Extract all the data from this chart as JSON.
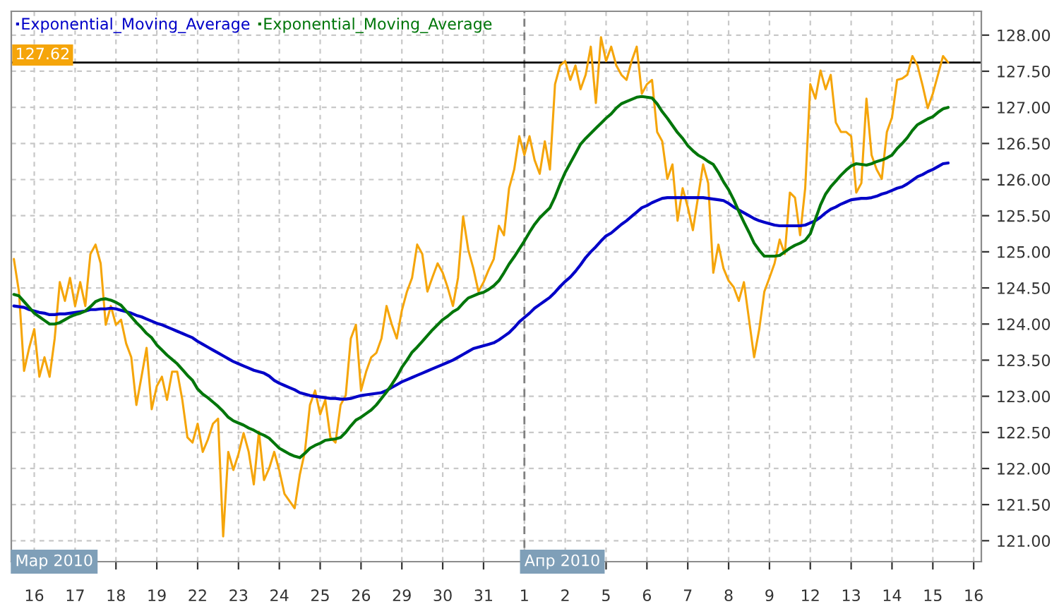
{
  "chart_data": {
    "type": "line",
    "categories": [
      null,
      null,
      null,
      null,
      "16",
      null,
      null,
      null,
      null,
      null,
      null,
      null,
      "17",
      null,
      null,
      null,
      null,
      null,
      null,
      null,
      "18",
      null,
      null,
      null,
      null,
      null,
      null,
      null,
      "19",
      null,
      null,
      null,
      null,
      null,
      null,
      null,
      "22",
      null,
      null,
      null,
      null,
      null,
      null,
      null,
      "23",
      null,
      null,
      null,
      null,
      null,
      null,
      null,
      "24",
      null,
      null,
      null,
      null,
      null,
      null,
      null,
      "25",
      null,
      null,
      null,
      null,
      null,
      null,
      null,
      "26",
      null,
      null,
      null,
      null,
      null,
      null,
      null,
      "29",
      null,
      null,
      null,
      null,
      null,
      null,
      null,
      "30",
      null,
      null,
      null,
      null,
      null,
      null,
      null,
      "31",
      null,
      null,
      null,
      null,
      null,
      null,
      null,
      "1",
      null,
      null,
      null,
      null,
      null,
      null,
      null,
      "2",
      null,
      null,
      null,
      null,
      null,
      null,
      null,
      "5",
      null,
      null,
      null,
      null,
      null,
      null,
      null,
      "6",
      null,
      null,
      null,
      null,
      null,
      null,
      null,
      "7",
      null,
      null,
      null,
      null,
      null,
      null,
      null,
      "8",
      null,
      null,
      null,
      null,
      null,
      null,
      null,
      "9",
      null,
      null,
      null,
      null,
      null,
      null,
      null,
      "12",
      null,
      null,
      null,
      null,
      null,
      null,
      null,
      "13",
      null,
      null,
      null,
      null,
      null,
      null,
      null,
      "14",
      null,
      null,
      null,
      null,
      null,
      null,
      null,
      "15",
      null,
      null,
      null,
      null,
      null,
      null,
      null,
      "16",
      null
    ],
    "ylim": [
      120.71,
      128.33
    ],
    "yticks": [
      {
        "value": 121,
        "label": "121.00"
      },
      {
        "value": 121.5,
        "label": "121.50"
      },
      {
        "value": 122,
        "label": "122.00"
      },
      {
        "value": 122.5,
        "label": "122.50"
      },
      {
        "value": 123,
        "label": "123.00"
      },
      {
        "value": 123.5,
        "label": "123.50"
      },
      {
        "value": 124,
        "label": "124.00"
      },
      {
        "value": 124.5,
        "label": "124.50"
      },
      {
        "value": 125,
        "label": "125.00"
      },
      {
        "value": 125.5,
        "label": "125.50"
      },
      {
        "value": 126,
        "label": "126.00"
      },
      {
        "value": 126.5,
        "label": "126.50"
      },
      {
        "value": 127,
        "label": "127.00"
      },
      {
        "value": 127.5,
        "label": "127.50"
      },
      {
        "value": 128,
        "label": "128.00"
      }
    ],
    "grid": true,
    "legend": "top left",
    "ref_lines": [
      {
        "axis": "x",
        "value": "1",
        "label": "Апр 2010",
        "color": "#808080",
        "line_style": "dashed"
      },
      {
        "axis": "y",
        "value": 127.62,
        "label": "127.62",
        "color": "#000000",
        "line_style": "solid"
      }
    ],
    "annotations": [
      "Мар 2010"
    ],
    "series": [
      {
        "color": "#f5a50a",
        "values": [
          124.9,
          124.45,
          123.35,
          123.67,
          123.93,
          123.27,
          123.54,
          123.27,
          123.8,
          124.58,
          124.32,
          124.64,
          124.25,
          124.58,
          124.25,
          124.97,
          125.1,
          124.84,
          123.99,
          124.25,
          123.99,
          124.06,
          123.73,
          123.54,
          122.88,
          123.27,
          123.67,
          122.82,
          123.14,
          123.27,
          122.95,
          123.34,
          123.34,
          122.95,
          122.43,
          122.36,
          122.62,
          122.23,
          122.4,
          122.62,
          122.69,
          121.06,
          122.23,
          121.98,
          122.2,
          122.49,
          122.23,
          121.78,
          122.51,
          121.84,
          122.0,
          122.23,
          121.97,
          121.65,
          121.55,
          121.45,
          121.91,
          122.23,
          122.88,
          123.08,
          122.75,
          122.95,
          122.43,
          122.36,
          122.88,
          123.01,
          123.8,
          123.99,
          123.08,
          123.34,
          123.54,
          123.6,
          123.8,
          124.25,
          124.0,
          123.8,
          124.19,
          124.45,
          124.64,
          125.1,
          124.97,
          124.45,
          124.65,
          124.84,
          124.71,
          124.5,
          124.25,
          124.64,
          125.49,
          125.03,
          124.77,
          124.45,
          124.58,
          124.75,
          124.9,
          125.36,
          125.23,
          125.88,
          126.14,
          126.6,
          126.34,
          126.6,
          126.27,
          126.08,
          126.53,
          126.14,
          127.32,
          127.58,
          127.64,
          127.38,
          127.58,
          127.25,
          127.45,
          127.84,
          127.06,
          127.97,
          127.64,
          127.84,
          127.58,
          127.45,
          127.38,
          127.64,
          127.84,
          127.19,
          127.32,
          127.38,
          126.66,
          126.53,
          126.01,
          126.21,
          125.43,
          125.88,
          125.62,
          125.3,
          125.75,
          126.21,
          125.95,
          124.71,
          125.1,
          124.77,
          124.6,
          124.51,
          124.32,
          124.58,
          124.06,
          123.54,
          123.93,
          124.45,
          124.64,
          124.84,
          125.17,
          124.97,
          125.82,
          125.75,
          125.23,
          125.88,
          127.32,
          127.12,
          127.51,
          127.25,
          127.45,
          126.79,
          126.66,
          126.66,
          126.6,
          125.82,
          125.95,
          127.12,
          126.34,
          126.14,
          126.01,
          126.66,
          126.86,
          127.38,
          127.4,
          127.45,
          127.71,
          127.58,
          127.3,
          126.99,
          127.19,
          127.45,
          127.71,
          127.62,
          null,
          null,
          null,
          null,
          null,
          null
        ]
      },
      {
        "name": "Exponential_Moving_Average",
        "color": "#0000c8",
        "values": [
          124.25,
          124.24,
          124.23,
          124.2,
          124.18,
          124.16,
          124.15,
          124.13,
          124.13,
          124.14,
          124.14,
          124.15,
          124.16,
          124.17,
          124.18,
          124.2,
          124.2,
          124.21,
          124.21,
          124.22,
          124.21,
          124.19,
          124.17,
          124.15,
          124.12,
          124.1,
          124.07,
          124.04,
          124.01,
          123.99,
          123.96,
          123.93,
          123.9,
          123.87,
          123.84,
          123.81,
          123.76,
          123.72,
          123.68,
          123.64,
          123.6,
          123.56,
          123.52,
          123.48,
          123.45,
          123.42,
          123.39,
          123.36,
          123.34,
          123.32,
          123.28,
          123.22,
          123.18,
          123.15,
          123.12,
          123.09,
          123.05,
          123.03,
          123.01,
          123.0,
          122.99,
          122.98,
          122.97,
          122.97,
          122.96,
          122.96,
          122.97,
          122.99,
          123.01,
          123.02,
          123.03,
          123.04,
          123.05,
          123.08,
          123.12,
          123.16,
          123.2,
          123.23,
          123.26,
          123.29,
          123.32,
          123.35,
          123.38,
          123.41,
          123.44,
          123.47,
          123.5,
          123.54,
          123.58,
          123.62,
          123.66,
          123.68,
          123.7,
          123.72,
          123.74,
          123.78,
          123.83,
          123.88,
          123.95,
          124.03,
          124.09,
          124.15,
          124.22,
          124.27,
          124.32,
          124.37,
          124.44,
          124.52,
          124.59,
          124.65,
          124.73,
          124.82,
          124.92,
          125.0,
          125.07,
          125.15,
          125.22,
          125.26,
          125.32,
          125.38,
          125.43,
          125.49,
          125.55,
          125.61,
          125.64,
          125.68,
          125.71,
          125.74,
          125.75,
          125.75,
          125.75,
          125.75,
          125.75,
          125.75,
          125.75,
          125.75,
          125.74,
          125.73,
          125.72,
          125.71,
          125.67,
          125.62,
          125.58,
          125.54,
          125.5,
          125.46,
          125.43,
          125.41,
          125.39,
          125.37,
          125.36,
          125.36,
          125.36,
          125.36,
          125.36,
          125.37,
          125.4,
          125.43,
          125.48,
          125.54,
          125.59,
          125.62,
          125.66,
          125.69,
          125.72,
          125.73,
          125.74,
          125.74,
          125.75,
          125.77,
          125.8,
          125.82,
          125.85,
          125.88,
          125.9,
          125.94,
          125.99,
          126.04,
          126.07,
          126.11,
          126.14,
          126.18,
          126.22,
          126.23,
          null,
          null,
          null,
          null,
          null,
          null
        ]
      },
      {
        "name": "Exponential_Moving_Average",
        "color": "#00760a",
        "values": [
          124.41,
          124.39,
          124.31,
          124.23,
          124.15,
          124.1,
          124.05,
          124.0,
          124.0,
          124.02,
          124.06,
          124.1,
          124.13,
          124.15,
          124.18,
          124.24,
          124.31,
          124.34,
          124.35,
          124.33,
          124.3,
          124.26,
          124.18,
          124.1,
          124.02,
          123.95,
          123.87,
          123.81,
          123.71,
          123.64,
          123.57,
          123.51,
          123.45,
          123.37,
          123.29,
          123.22,
          123.1,
          123.03,
          122.98,
          122.92,
          122.86,
          122.79,
          122.71,
          122.66,
          122.63,
          122.6,
          122.56,
          122.53,
          122.49,
          122.46,
          122.42,
          122.35,
          122.28,
          122.24,
          122.2,
          122.17,
          122.15,
          122.21,
          122.28,
          122.32,
          122.35,
          122.39,
          122.4,
          122.41,
          122.43,
          122.5,
          122.59,
          122.67,
          122.71,
          122.76,
          122.81,
          122.88,
          122.97,
          123.06,
          123.16,
          123.27,
          123.4,
          123.5,
          123.61,
          123.68,
          123.76,
          123.84,
          123.92,
          123.99,
          124.06,
          124.11,
          124.17,
          124.21,
          124.29,
          124.36,
          124.39,
          124.42,
          124.44,
          124.48,
          124.53,
          124.6,
          124.71,
          124.83,
          124.93,
          125.04,
          125.15,
          125.27,
          125.38,
          125.47,
          125.54,
          125.61,
          125.76,
          125.94,
          126.1,
          126.23,
          126.36,
          126.49,
          126.57,
          126.64,
          126.71,
          126.78,
          126.85,
          126.91,
          126.99,
          127.05,
          127.08,
          127.11,
          127.14,
          127.15,
          127.14,
          127.13,
          127.05,
          126.94,
          126.85,
          126.75,
          126.65,
          126.57,
          126.47,
          126.4,
          126.34,
          126.3,
          126.25,
          126.21,
          126.1,
          125.97,
          125.86,
          125.72,
          125.56,
          125.41,
          125.27,
          125.12,
          125.02,
          124.94,
          124.94,
          124.94,
          124.95,
          125.0,
          125.05,
          125.09,
          125.12,
          125.16,
          125.25,
          125.45,
          125.65,
          125.8,
          125.9,
          125.98,
          126.06,
          126.13,
          126.19,
          126.22,
          126.21,
          126.2,
          126.22,
          126.25,
          126.27,
          126.3,
          126.34,
          126.43,
          126.5,
          126.58,
          126.68,
          126.76,
          126.8,
          126.84,
          126.87,
          126.93,
          126.98,
          127.0,
          null,
          null,
          null,
          null,
          null,
          null
        ]
      }
    ]
  }
}
